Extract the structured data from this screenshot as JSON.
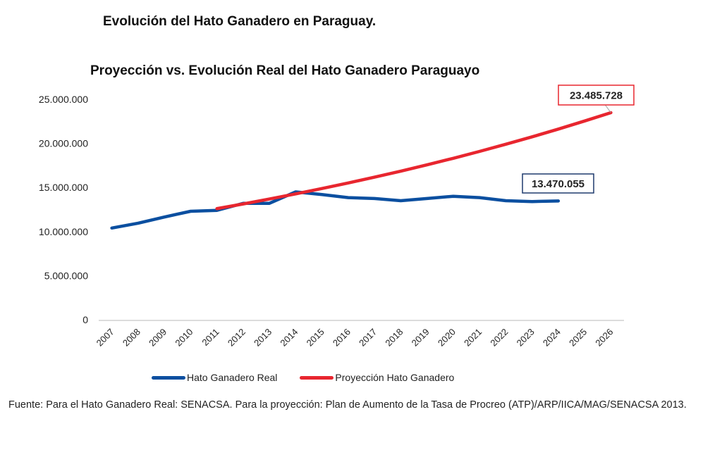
{
  "page_title": "Evolución del Hato Ganadero en Paraguay.",
  "source_note": "Fuente: Para el Hato Ganadero Real: SENACSA. Para la proyección: Plan de Aumento de la Tasa de Procreo (ATP)/ARP/IICA/MAG/SENACSA 2013.",
  "chart_data": {
    "type": "line",
    "title": "Proyección vs. Evolución Real del Hato Ganadero Paraguayo",
    "xlabel": "",
    "ylabel": "",
    "categories": [
      "2007",
      "2008",
      "2009",
      "2010",
      "2011",
      "2012",
      "2013",
      "2014",
      "2015",
      "2016",
      "2017",
      "2018",
      "2019",
      "2020",
      "2021",
      "2022",
      "2023",
      "2024",
      "2025",
      "2026"
    ],
    "ylim": [
      0,
      25000000
    ],
    "yticks": [
      0,
      5000000,
      10000000,
      15000000,
      20000000,
      25000000
    ],
    "ytick_labels": [
      "0",
      "5.000.000",
      "10.000.000",
      "15.000.000",
      "20.000.000",
      "25.000.000"
    ],
    "grid": false,
    "legend_position": "bottom",
    "series": [
      {
        "name": "Hato Ganadero Real",
        "color": "#0b4fa0",
        "values": [
          10400000,
          10950000,
          11650000,
          12300000,
          12400000,
          13200000,
          13200000,
          14500000,
          14200000,
          13850000,
          13750000,
          13500000,
          13750000,
          14000000,
          13850000,
          13500000,
          13400000,
          13470055,
          null,
          null
        ],
        "end_label": "13.470.055"
      },
      {
        "name": "Proyección Hato Ganadero",
        "color": "#e8262f",
        "values": [
          null,
          null,
          null,
          null,
          12600000,
          13130000,
          13690000,
          14270000,
          14880000,
          15510000,
          16170000,
          16850000,
          17570000,
          18310000,
          19090000,
          19900000,
          20740000,
          21620000,
          22540000,
          23485728
        ],
        "end_label": "23.485.728"
      }
    ]
  }
}
